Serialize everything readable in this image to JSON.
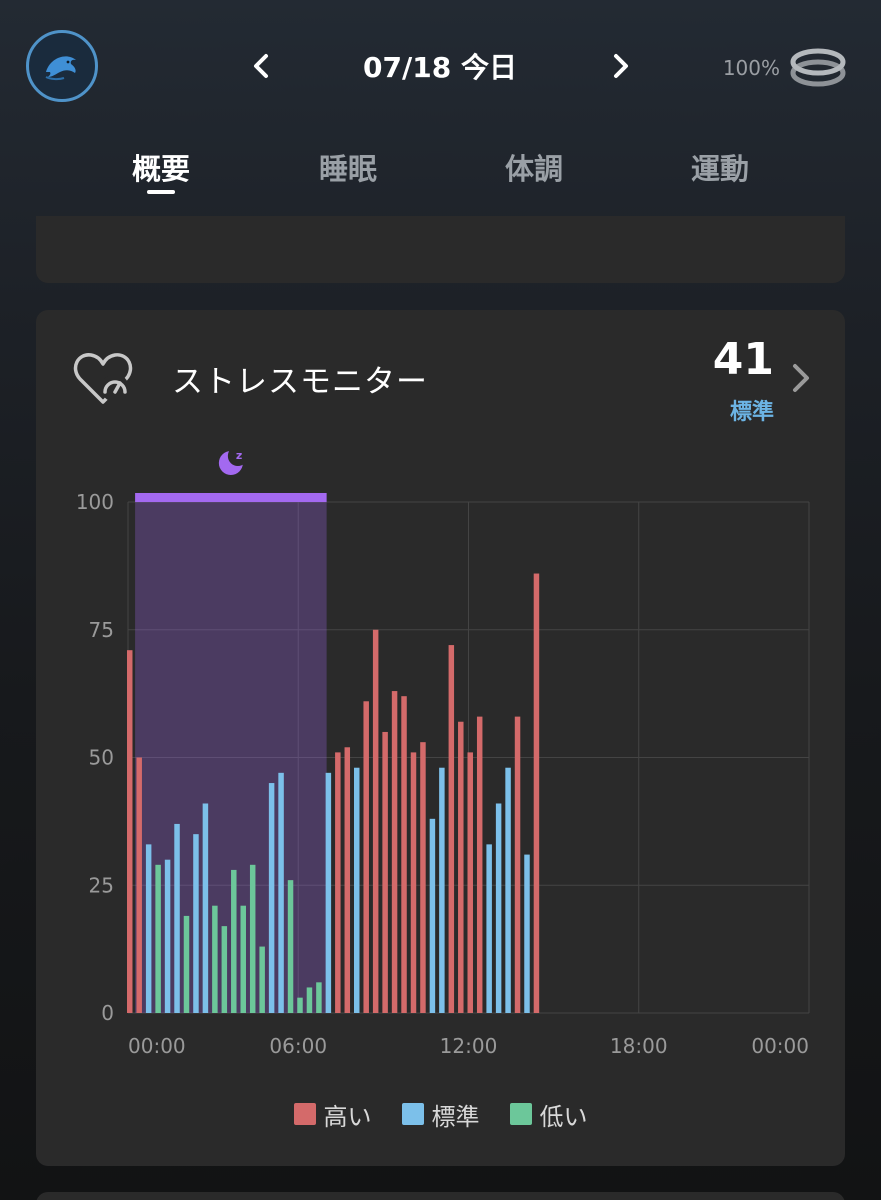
{
  "header": {
    "date": "07/18 今日",
    "battery": "100%",
    "icons": {
      "avatar": "dolphin-avatar",
      "prev": "chevron-left-icon",
      "next": "chevron-right-icon",
      "device": "ring-icon"
    }
  },
  "tabs": [
    {
      "label": "概要",
      "active": true
    },
    {
      "label": "睡眠",
      "active": false
    },
    {
      "label": "体調",
      "active": false
    },
    {
      "label": "運動",
      "active": false
    }
  ],
  "stress_card": {
    "title": "ストレスモニター",
    "score": "41",
    "level": "標準",
    "icon": "heart-gauge-icon",
    "sleep_icon": "moon-sleep-icon"
  },
  "colors": {
    "high": "#d46a6a",
    "normal": "#7cc0ea",
    "low": "#6cc79a",
    "sleep": "#a369f0",
    "level_text": "#6cb4e4"
  },
  "chart_data": {
    "type": "bar",
    "ylim": [
      0,
      100
    ],
    "yticks": [
      "0",
      "25",
      "50",
      "75",
      "100"
    ],
    "xticks": [
      "00:00",
      "06:00",
      "12:00",
      "18:00",
      "00:00"
    ],
    "xrange_hours": [
      0,
      24
    ],
    "grid": true,
    "legend_position": "bottom",
    "legend": [
      {
        "label": "高い",
        "key": "high"
      },
      {
        "label": "標準",
        "key": "normal"
      },
      {
        "label": "低い",
        "key": "low"
      }
    ],
    "sleep_period_hours": [
      0.25,
      7.0
    ],
    "bar_interval_minutes": 20,
    "values": [
      71,
      50,
      33,
      29,
      30,
      37,
      19,
      35,
      41,
      21,
      17,
      28,
      21,
      29,
      13,
      45,
      47,
      26,
      3,
      5,
      6,
      47,
      51,
      52,
      48,
      61,
      75,
      55,
      63,
      62,
      51,
      53,
      38,
      48,
      72,
      57,
      51,
      58,
      33,
      41,
      48,
      58,
      31,
      86
    ],
    "categories": [
      "high",
      "high",
      "normal",
      "low",
      "normal",
      "normal",
      "low",
      "normal",
      "normal",
      "low",
      "low",
      "low",
      "low",
      "low",
      "low",
      "normal",
      "normal",
      "low",
      "low",
      "low",
      "low",
      "normal",
      "high",
      "high",
      "normal",
      "high",
      "high",
      "high",
      "high",
      "high",
      "high",
      "high",
      "normal",
      "normal",
      "high",
      "high",
      "high",
      "high",
      "normal",
      "normal",
      "normal",
      "high",
      "normal",
      "high"
    ]
  }
}
